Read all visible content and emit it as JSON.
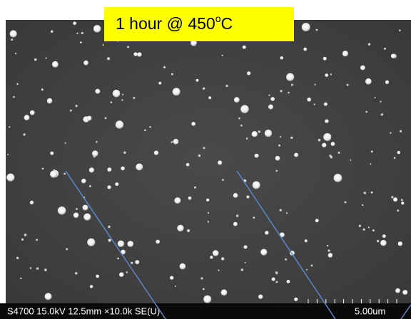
{
  "label": {
    "text": "1 hour @ 450",
    "superscript": "o",
    "unit": "C"
  },
  "info_bar": {
    "instrument": "S4700 15.0kV 12.5mm ×10.0k SE(U)",
    "scale": "5.00um"
  }
}
